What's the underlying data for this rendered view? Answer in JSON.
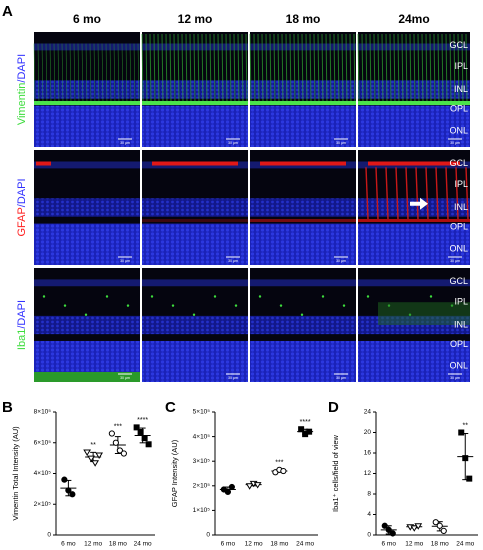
{
  "panel_labels": [
    "A",
    "B",
    "C",
    "D"
  ],
  "images": {
    "columns": [
      "6 mo",
      "12 mo",
      "18 mo",
      "24mo"
    ],
    "rows": [
      {
        "marker": "Vimentin",
        "stain": "/DAPI"
      },
      {
        "marker": "GFAP",
        "stain": "/DAPI"
      },
      {
        "marker": "Iba1",
        "stain": "/DAPI"
      }
    ],
    "layers": [
      [
        "GCL",
        "IPL",
        "INL",
        "OPL",
        "ONL"
      ],
      [
        "GCL",
        "IPL",
        "INL",
        "OPL",
        "ONL"
      ],
      [
        "GCL",
        "IPL",
        "INL",
        "OPL",
        "ONL"
      ]
    ],
    "scale_bar": "30 µm"
  },
  "chart_data": [
    {
      "type": "scatter",
      "y_label": "Vimentin Total Intensity (AU)",
      "categories": [
        "6 mo",
        "12 mo",
        "18 mo",
        "24 mo"
      ],
      "groups": [
        [
          360000,
          290000,
          265000
        ],
        [
          540000,
          500000,
          470000,
          520000
        ],
        [
          660000,
          600000,
          550000,
          530000
        ],
        [
          700000,
          670000,
          630000,
          590000
        ]
      ],
      "mean": [
        305000,
        507500,
        585000,
        647500
      ],
      "sd": [
        50000,
        30000,
        55000,
        48000
      ],
      "markers": [
        "circle-filled",
        "triangle-open",
        "circle-open",
        "square-filled"
      ],
      "color": "#000000",
      "significance": [
        null,
        "**",
        "***",
        "****"
      ],
      "ylim": [
        0,
        800000
      ],
      "yticks": [
        0,
        {
          "value": 200000,
          "label": "2×10⁵"
        },
        {
          "value": 400000,
          "label": "4×10⁵"
        },
        {
          "value": 600000,
          "label": "6×10⁵"
        },
        {
          "value": 800000,
          "label": "8×10⁵"
        }
      ]
    },
    {
      "type": "scatter",
      "y_label": "GFAP Intensity (AU)",
      "categories": [
        "6 mo",
        "12 mo",
        "18 mo",
        "24 mo"
      ],
      "groups": [
        [
          185000,
          175000,
          195000
        ],
        [
          200000,
          210000,
          205000
        ],
        [
          255000,
          265000,
          260000
        ],
        [
          430000,
          410000,
          420000
        ]
      ],
      "mean": [
        185000,
        205000,
        260000,
        420000
      ],
      "sd": [
        10000,
        5000,
        5000,
        10000
      ],
      "markers": [
        "circle-filled",
        "triangle-open",
        "circle-open",
        "square-filled"
      ],
      "color": "#000000",
      "significance": [
        null,
        null,
        "***",
        "****"
      ],
      "ylim": [
        0,
        500000
      ],
      "yticks": [
        0,
        {
          "value": 100000,
          "label": "1×10⁵"
        },
        {
          "value": 200000,
          "label": "2×10⁵"
        },
        {
          "value": 300000,
          "label": "3×10⁵"
        },
        {
          "value": 400000,
          "label": "4×10⁵"
        },
        {
          "value": 500000,
          "label": "5×10⁵"
        }
      ]
    },
    {
      "type": "scatter",
      "y_label": "Iba1⁺ cells/field of view",
      "categories": [
        "6 mo",
        "12 mo",
        "18 mo",
        "24 mo"
      ],
      "groups": [
        [
          1.8,
          1,
          0.3
        ],
        [
          1.6,
          1.4,
          1.8
        ],
        [
          2.5,
          1.8,
          0.8
        ],
        [
          20,
          15,
          11
        ]
      ],
      "mean": [
        1,
        1.6,
        1.7,
        15.3
      ],
      "sd": [
        0.8,
        0.2,
        0.9,
        4.5
      ],
      "markers": [
        "circle-filled",
        "triangle-open",
        "circle-open",
        "square-filled"
      ],
      "color": "#000000",
      "significance": [
        null,
        null,
        null,
        "**"
      ],
      "ylim": [
        0,
        24
      ],
      "yticks": [
        0,
        4,
        8,
        12,
        16,
        20,
        24
      ]
    }
  ]
}
